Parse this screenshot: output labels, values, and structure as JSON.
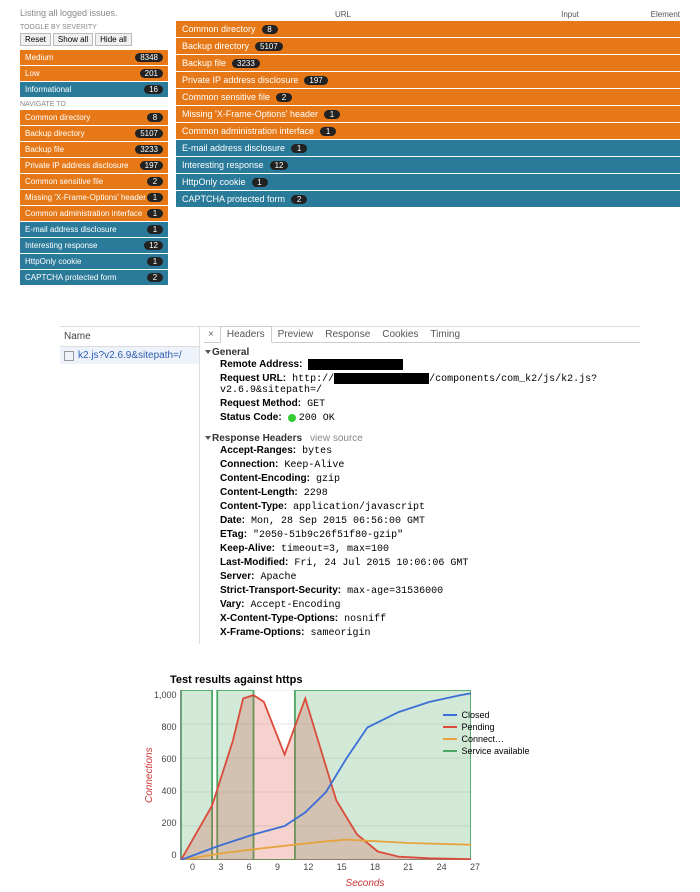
{
  "panel1": {
    "listing_label": "Listing all logged issues.",
    "toggle_label": "TOGGLE BY SEVERITY",
    "buttons": {
      "reset": "Reset",
      "show_all": "Show all",
      "hide_all": "Hide all"
    },
    "severities": [
      {
        "label": "Medium",
        "count": "8348",
        "color": "orange"
      },
      {
        "label": "Low",
        "count": "201",
        "color": "orange"
      },
      {
        "label": "Informational",
        "count": "16",
        "color": "blue"
      }
    ],
    "navigate_label": "NAVIGATE TO",
    "nav_items": [
      {
        "label": "Common directory",
        "count": "8",
        "color": "orange"
      },
      {
        "label": "Backup directory",
        "count": "5107",
        "color": "orange"
      },
      {
        "label": "Backup file",
        "count": "3233",
        "color": "orange"
      },
      {
        "label": "Private IP address disclosure",
        "count": "197",
        "color": "orange"
      },
      {
        "label": "Common sensitive file",
        "count": "2",
        "color": "orange"
      },
      {
        "label": "Missing 'X-Frame-Options' header",
        "count": "1",
        "color": "orange"
      },
      {
        "label": "Common administration interface",
        "count": "1",
        "color": "orange"
      },
      {
        "label": "E-mail address disclosure",
        "count": "1",
        "color": "blue"
      },
      {
        "label": "Interesting response",
        "count": "12",
        "color": "blue"
      },
      {
        "label": "HttpOnly cookie",
        "count": "1",
        "color": "blue"
      },
      {
        "label": "CAPTCHA protected form",
        "count": "2",
        "color": "blue"
      }
    ],
    "grid_headers": {
      "url": "URL",
      "input": "Input",
      "element": "Element"
    },
    "grid_rows": [
      {
        "label": "Common directory",
        "count": "8",
        "color": "orange"
      },
      {
        "label": "Backup directory",
        "count": "5107",
        "color": "orange"
      },
      {
        "label": "Backup file",
        "count": "3233",
        "color": "orange"
      },
      {
        "label": "Private IP address disclosure",
        "count": "197",
        "color": "orange"
      },
      {
        "label": "Common sensitive file",
        "count": "2",
        "color": "orange"
      },
      {
        "label": "Missing 'X-Frame-Options' header",
        "count": "1",
        "color": "orange"
      },
      {
        "label": "Common administration interface",
        "count": "1",
        "color": "orange"
      },
      {
        "label": "E-mail address disclosure",
        "count": "1",
        "color": "blue"
      },
      {
        "label": "Interesting response",
        "count": "12",
        "color": "blue"
      },
      {
        "label": "HttpOnly cookie",
        "count": "1",
        "color": "blue"
      },
      {
        "label": "CAPTCHA protected form",
        "count": "2",
        "color": "blue"
      }
    ]
  },
  "panel2": {
    "name_header": "Name",
    "resource": "k2.js?v2.6.9&sitepath=/",
    "tabs": [
      "Headers",
      "Preview",
      "Response",
      "Cookies",
      "Timing"
    ],
    "active_tab": "Headers",
    "general_label": "General",
    "general": {
      "remote_prefix": "Remote Address:",
      "url_label": "Request URL:",
      "url_prefix": "http://",
      "url_suffix": "/components/com_k2/js/k2.js?v2.6.9&sitepath=/",
      "method_label": "Request Method:",
      "method_value": "GET",
      "status_label": "Status Code:",
      "status_value": "200 OK"
    },
    "response_label": "Response Headers",
    "view_source": "view source",
    "headers": [
      {
        "k": "Accept-Ranges:",
        "v": "bytes"
      },
      {
        "k": "Connection:",
        "v": "Keep-Alive"
      },
      {
        "k": "Content-Encoding:",
        "v": "gzip"
      },
      {
        "k": "Content-Length:",
        "v": "2298"
      },
      {
        "k": "Content-Type:",
        "v": "application/javascript"
      },
      {
        "k": "Date:",
        "v": "Mon, 28 Sep 2015 06:56:00 GMT"
      },
      {
        "k": "ETag:",
        "v": "\"2050-51b9c26f51f80-gzip\""
      },
      {
        "k": "Keep-Alive:",
        "v": "timeout=3, max=100"
      },
      {
        "k": "Last-Modified:",
        "v": "Fri, 24 Jul 2015 10:06:06 GMT"
      },
      {
        "k": "Server:",
        "v": "Apache"
      },
      {
        "k": "Strict-Transport-Security:",
        "v": "max-age=31536000"
      },
      {
        "k": "Vary:",
        "v": "Accept-Encoding"
      },
      {
        "k": "X-Content-Type-Options:",
        "v": "nosniff"
      },
      {
        "k": "X-Frame-Options:",
        "v": "sameorigin"
      }
    ]
  },
  "chart": {
    "title": "Test results against https",
    "ylabel": "Connections",
    "xlabel": "Seconds",
    "ylim": [
      0,
      1000
    ],
    "yticks": [
      "1,000",
      "800",
      "600",
      "400",
      "200",
      "0"
    ],
    "xlim": [
      0,
      28
    ],
    "xticks": [
      "0",
      "3",
      "6",
      "9",
      "12",
      "15",
      "18",
      "21",
      "24",
      "27"
    ],
    "grid_color": "#e4e4e4",
    "series": {
      "closed": {
        "label": "Closed",
        "color": "#3b6fd6",
        "fill": 0,
        "points": [
          [
            0,
            0
          ],
          [
            3.5,
            80
          ],
          [
            7,
            150
          ],
          [
            10,
            200
          ],
          [
            12,
            280
          ],
          [
            14,
            400
          ],
          [
            16,
            600
          ],
          [
            18,
            780
          ],
          [
            21,
            870
          ],
          [
            24,
            930
          ],
          [
            27,
            970
          ],
          [
            28,
            980
          ]
        ]
      },
      "pending": {
        "label": "Pending",
        "color": "#d94c3b",
        "fill": 0.25,
        "points": [
          [
            0,
            0
          ],
          [
            3,
            320
          ],
          [
            5,
            700
          ],
          [
            6,
            950
          ],
          [
            7,
            970
          ],
          [
            8,
            930
          ],
          [
            10,
            620
          ],
          [
            12,
            950
          ],
          [
            13,
            750
          ],
          [
            15,
            350
          ],
          [
            17,
            150
          ],
          [
            19,
            50
          ],
          [
            21,
            20
          ],
          [
            24,
            10
          ],
          [
            28,
            5
          ]
        ]
      },
      "connect": {
        "label": "Connect…",
        "color": "#e7a43c",
        "fill": 0,
        "points": [
          [
            0,
            0
          ],
          [
            4,
            40
          ],
          [
            8,
            70
          ],
          [
            11,
            90
          ],
          [
            14,
            110
          ],
          [
            16,
            120
          ],
          [
            19,
            110
          ],
          [
            22,
            100
          ],
          [
            25,
            95
          ],
          [
            28,
            90
          ]
        ]
      },
      "service": {
        "label": "Service available",
        "color": "#4aa863",
        "fill": 0.25,
        "points": [
          [
            0,
            0
          ],
          [
            0,
            1000
          ],
          [
            3,
            1000
          ],
          [
            3,
            0
          ],
          [
            3.5,
            0
          ],
          [
            3.5,
            1000
          ],
          [
            7,
            1000
          ],
          [
            7,
            0
          ],
          [
            11,
            0
          ],
          [
            11,
            1000
          ],
          [
            28,
            1000
          ],
          [
            28,
            0
          ]
        ]
      }
    },
    "legend_order": [
      "closed",
      "pending",
      "connect",
      "service"
    ]
  }
}
